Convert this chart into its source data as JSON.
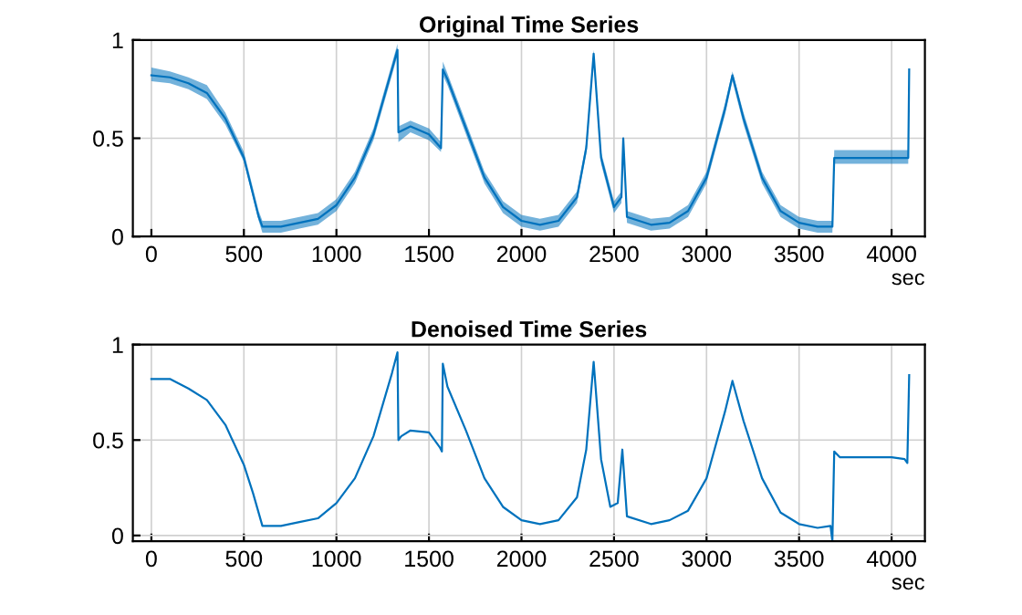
{
  "chart_data": [
    {
      "type": "line",
      "title": "Original Time Series",
      "xlabel": "sec",
      "xlim": [
        -100,
        4180
      ],
      "xticks": [
        0,
        500,
        1000,
        1500,
        2000,
        2500,
        3000,
        3500,
        4000
      ],
      "ylim": [
        0,
        1
      ],
      "yticks": [
        0,
        0.5,
        1
      ],
      "grid": true,
      "line_style": "solid",
      "series": [
        {
          "color": "#0072bd",
          "x": [
            0,
            100,
            200,
            300,
            400,
            500,
            580,
            600,
            700,
            800,
            900,
            1000,
            1100,
            1200,
            1300,
            1330,
            1335,
            1400,
            1500,
            1565,
            1575,
            1600,
            1700,
            1800,
            1900,
            2000,
            2100,
            2200,
            2300,
            2350,
            2390,
            2430,
            2500,
            2540,
            2550,
            2570,
            2700,
            2800,
            2900,
            3000,
            3100,
            3140,
            3200,
            3300,
            3400,
            3500,
            3600,
            3680,
            3690,
            3800,
            4000,
            4090,
            4095
          ],
          "values": [
            0.82,
            0.81,
            0.78,
            0.73,
            0.6,
            0.4,
            0.1,
            0.05,
            0.05,
            0.07,
            0.09,
            0.16,
            0.3,
            0.52,
            0.85,
            0.95,
            0.53,
            0.56,
            0.52,
            0.45,
            0.85,
            0.8,
            0.55,
            0.3,
            0.15,
            0.08,
            0.06,
            0.08,
            0.2,
            0.45,
            0.93,
            0.4,
            0.15,
            0.2,
            0.5,
            0.1,
            0.06,
            0.07,
            0.13,
            0.3,
            0.65,
            0.82,
            0.6,
            0.3,
            0.13,
            0.07,
            0.05,
            0.05,
            0.4,
            0.4,
            0.4,
            0.4,
            0.85
          ],
          "lower": [
            0.79,
            0.78,
            0.75,
            0.7,
            0.57,
            0.38,
            0.08,
            0.02,
            0.02,
            0.04,
            0.06,
            0.13,
            0.27,
            0.49,
            0.82,
            0.92,
            0.48,
            0.53,
            0.49,
            0.43,
            0.82,
            0.77,
            0.52,
            0.27,
            0.12,
            0.05,
            0.03,
            0.05,
            0.17,
            0.42,
            0.9,
            0.37,
            0.12,
            0.17,
            0.47,
            0.07,
            0.03,
            0.04,
            0.1,
            0.27,
            0.62,
            0.79,
            0.57,
            0.27,
            0.1,
            0.04,
            0.02,
            0.02,
            0.37,
            0.37,
            0.37,
            0.37,
            0.85
          ],
          "upper": [
            0.86,
            0.84,
            0.81,
            0.77,
            0.63,
            0.43,
            0.13,
            0.08,
            0.08,
            0.1,
            0.12,
            0.19,
            0.33,
            0.55,
            0.88,
            0.98,
            0.56,
            0.59,
            0.55,
            0.48,
            0.89,
            0.83,
            0.58,
            0.33,
            0.18,
            0.11,
            0.09,
            0.11,
            0.23,
            0.48,
            0.95,
            0.43,
            0.18,
            0.23,
            0.51,
            0.13,
            0.09,
            0.1,
            0.16,
            0.33,
            0.68,
            0.84,
            0.63,
            0.33,
            0.16,
            0.1,
            0.08,
            0.08,
            0.44,
            0.44,
            0.44,
            0.44,
            0.85
          ]
        }
      ]
    },
    {
      "type": "line",
      "title": "Denoised Time Series",
      "xlabel": "sec",
      "xlim": [
        -100,
        4180
      ],
      "xticks": [
        0,
        500,
        1000,
        1500,
        2000,
        2500,
        3000,
        3500,
        4000
      ],
      "ylim": [
        -0.03,
        1
      ],
      "yticks": [
        0,
        0.5,
        1
      ],
      "grid": true,
      "line_style": "solid",
      "series": [
        {
          "color": "#0072bd",
          "x": [
            0,
            100,
            200,
            300,
            400,
            500,
            550,
            600,
            700,
            800,
            900,
            1000,
            1100,
            1200,
            1300,
            1330,
            1335,
            1350,
            1400,
            1500,
            1560,
            1570,
            1575,
            1600,
            1700,
            1800,
            1900,
            2000,
            2100,
            2200,
            2300,
            2350,
            2390,
            2430,
            2480,
            2520,
            2545,
            2570,
            2700,
            2800,
            2900,
            3000,
            3100,
            3140,
            3200,
            3300,
            3400,
            3500,
            3600,
            3670,
            3680,
            3690,
            3720,
            3800,
            4000,
            4070,
            4085,
            4095
          ],
          "values": [
            0.82,
            0.82,
            0.77,
            0.71,
            0.58,
            0.37,
            0.22,
            0.05,
            0.05,
            0.07,
            0.09,
            0.17,
            0.3,
            0.52,
            0.85,
            0.96,
            0.5,
            0.52,
            0.55,
            0.54,
            0.46,
            0.44,
            0.9,
            0.78,
            0.55,
            0.3,
            0.15,
            0.08,
            0.06,
            0.08,
            0.2,
            0.45,
            0.91,
            0.4,
            0.15,
            0.17,
            0.45,
            0.1,
            0.06,
            0.08,
            0.13,
            0.3,
            0.65,
            0.81,
            0.6,
            0.3,
            0.12,
            0.06,
            0.04,
            0.05,
            -0.03,
            0.44,
            0.41,
            0.41,
            0.41,
            0.4,
            0.38,
            0.84
          ]
        }
      ]
    }
  ]
}
